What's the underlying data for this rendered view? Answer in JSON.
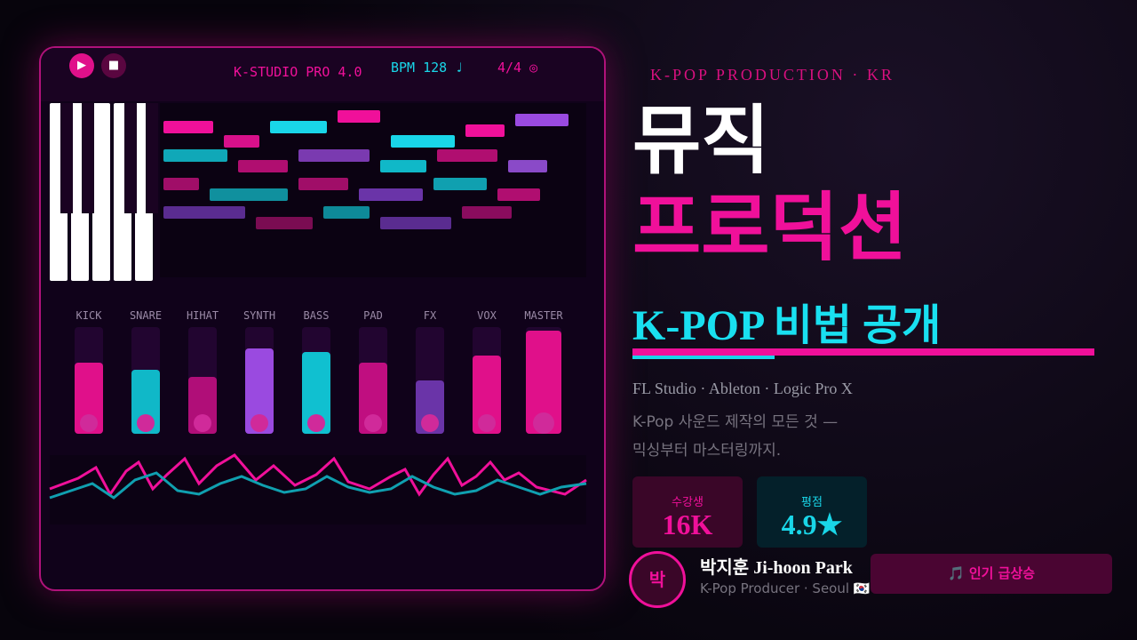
{
  "daw": {
    "play": "▶",
    "stop": "■",
    "title": "K-STUDIO PRO 4.0",
    "bpm": "BPM 128 ♩",
    "meter": "4/4 ◎",
    "channels": [
      "KICK",
      "SNARE",
      "HIHAT",
      "SYNTH",
      "BASS",
      "PAD",
      "FX",
      "VOX",
      "MASTER"
    ]
  },
  "header": {
    "kicker": "K-POP PRODUCTION · KR",
    "title_line1": "뮤직",
    "title_line2": "프로덕션",
    "subtitle": "K-POP 비법 공개"
  },
  "description": [
    "FL Studio · Ableton · Logic Pro X",
    "K-Pop 사운드 제작의 모든 것 —",
    "믹싱부터 마스터링까지."
  ],
  "stats": [
    {
      "label": "수강생",
      "value": "16K"
    },
    {
      "label": "평점",
      "value": "4.9★"
    }
  ],
  "author": {
    "initial": "박",
    "name": "박지훈 Ji-hoon Park",
    "role": "K-Pop Producer · Seoul 🇰🇷"
  },
  "badge": "🎵 인기 급상승"
}
